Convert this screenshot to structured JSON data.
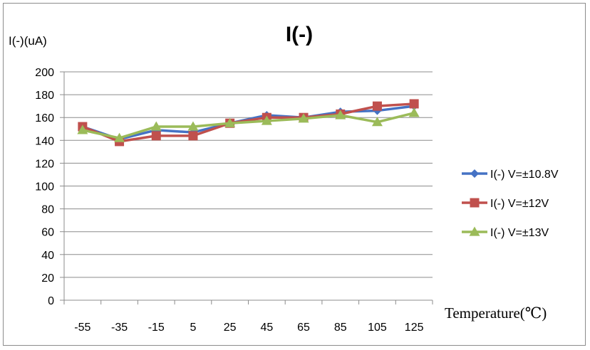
{
  "chart_data": {
    "type": "line",
    "title": "I(-)",
    "ylabel": "I(-)(uA)",
    "xlabel": "Temperature(℃)",
    "categories": [
      "-55",
      "-35",
      "-15",
      "5",
      "25",
      "45",
      "65",
      "85",
      "105",
      "125"
    ],
    "ylim": [
      0,
      200
    ],
    "yticks": [
      "0",
      "20",
      "40",
      "60",
      "80",
      "100",
      "120",
      "140",
      "160",
      "180",
      "200"
    ],
    "grid": "horizontal",
    "legend_position": "right",
    "series": [
      {
        "name": "I(-) V=±10.8V",
        "marker": "diamond",
        "color": "#4572c4",
        "values": [
          152,
          141,
          149,
          147,
          155,
          162,
          160,
          165,
          166,
          170
        ]
      },
      {
        "name": "I(-) V=±12V",
        "marker": "square",
        "color": "#c0504d",
        "values": [
          152,
          139,
          144,
          144,
          155,
          160,
          160,
          163,
          170,
          172
        ]
      },
      {
        "name": "I(-) V=±13V",
        "marker": "triangle",
        "color": "#9bbb59",
        "values": [
          149,
          142,
          152,
          152,
          155,
          157,
          159,
          162,
          156,
          164
        ]
      }
    ]
  }
}
